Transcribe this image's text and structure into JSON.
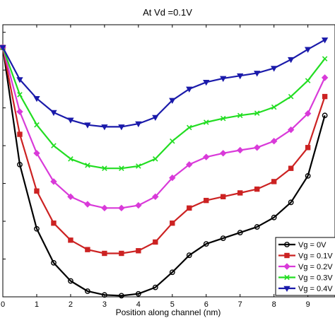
{
  "chart_data": {
    "type": "line",
    "title": "At Vd =0.1V",
    "xlabel": "Position along channel (nm)",
    "ylabel": "",
    "xlim": [
      0,
      9.8
    ],
    "ylim": [
      0,
      7.2
    ],
    "x_ticks": [
      0,
      1,
      2,
      3,
      4,
      5,
      6,
      7,
      8,
      9
    ],
    "y_ticks": [
      1,
      2,
      3,
      4,
      5,
      6,
      7
    ],
    "grid": false,
    "legend_position": "bottom-right",
    "x": [
      0,
      0.5,
      1,
      1.5,
      2,
      2.5,
      3,
      3.5,
      4,
      4.5,
      5,
      5.5,
      6,
      6.5,
      7,
      7.5,
      8,
      8.5,
      9,
      9.5
    ],
    "series": [
      {
        "name": "Vg = 0V",
        "color": "#000000",
        "marker": "circle",
        "values": [
          6.6,
          3.5,
          1.8,
          0.9,
          0.42,
          0.15,
          0.05,
          0.03,
          0.08,
          0.25,
          0.65,
          1.1,
          1.4,
          1.55,
          1.7,
          1.85,
          2.1,
          2.5,
          3.2,
          4.8
        ]
      },
      {
        "name": "Vg = 0.1V",
        "color": "#cc2222",
        "marker": "square",
        "values": [
          6.6,
          4.3,
          2.8,
          1.95,
          1.5,
          1.25,
          1.15,
          1.15,
          1.22,
          1.45,
          1.95,
          2.35,
          2.55,
          2.65,
          2.75,
          2.85,
          3.05,
          3.4,
          3.95,
          5.3
        ]
      },
      {
        "name": "Vg = 0.2V",
        "color": "#d93ad9",
        "marker": "diamond",
        "values": [
          6.6,
          4.9,
          3.8,
          3.05,
          2.65,
          2.45,
          2.35,
          2.35,
          2.42,
          2.65,
          3.15,
          3.5,
          3.7,
          3.8,
          3.88,
          3.95,
          4.12,
          4.42,
          4.85,
          5.8
        ]
      },
      {
        "name": "Vg = 0.3V",
        "color": "#22dd22",
        "marker": "x",
        "values": [
          6.6,
          5.35,
          4.55,
          4.0,
          3.65,
          3.48,
          3.4,
          3.4,
          3.46,
          3.65,
          4.12,
          4.48,
          4.62,
          4.72,
          4.8,
          4.86,
          5.02,
          5.3,
          5.72,
          6.3
        ]
      },
      {
        "name": "Vg = 0.4V",
        "color": "#1a1aaa",
        "marker": "triangle-down",
        "values": [
          6.6,
          5.75,
          5.25,
          4.88,
          4.68,
          4.55,
          4.5,
          4.5,
          4.58,
          4.75,
          5.2,
          5.5,
          5.68,
          5.78,
          5.85,
          5.92,
          6.05,
          6.28,
          6.55,
          6.8
        ]
      }
    ],
    "legend_labels_visible": [
      "Vg = 0V",
      "Vg = 0.1",
      "Vg = 0.2",
      "Vg = 0.3",
      "Vg = 0.4"
    ]
  }
}
